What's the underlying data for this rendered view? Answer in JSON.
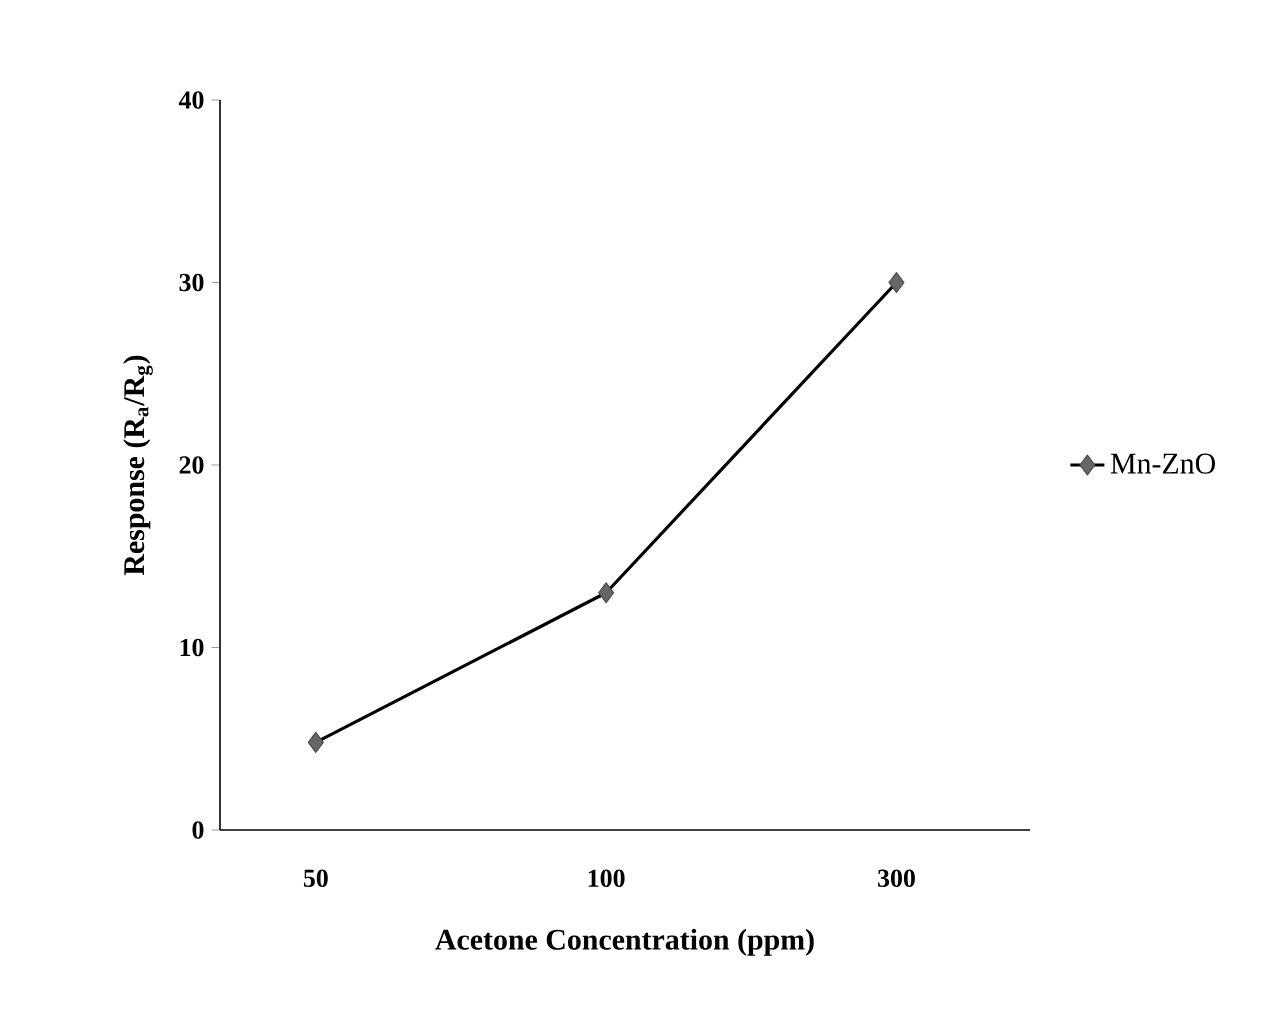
{
  "chart_data": {
    "type": "line",
    "xlabel": "Acetone Concentration (ppm)",
    "ylabel": "Response (R$_{a}$/R$_{g}$)",
    "categories": [
      "50",
      "100",
      "300"
    ],
    "series": [
      {
        "name": "Mn-ZnO",
        "color": "#000000",
        "values": [
          4.8,
          13,
          30
        ]
      }
    ],
    "ylim": [
      0,
      40
    ],
    "yticks": [
      0,
      10,
      20,
      30,
      40
    ],
    "grid": false,
    "legend": "right",
    "marker": "diamond",
    "line_style": "solid"
  }
}
